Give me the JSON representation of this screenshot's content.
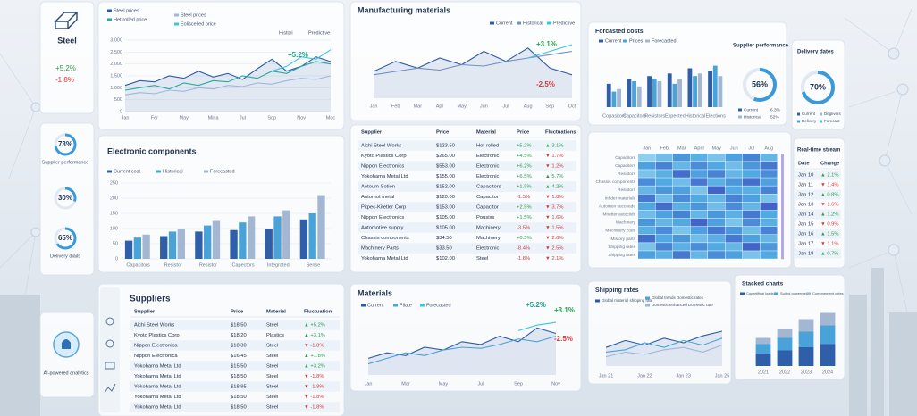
{
  "sidebar": {
    "steel": {
      "title": "Steel",
      "changes": [
        "+5.2%",
        "-1.8%"
      ]
    },
    "kpis": [
      {
        "value": 73,
        "label": "73%",
        "caption": "Supplier performance",
        "range": [
          0,
          100
        ]
      },
      {
        "value": 30,
        "label": "30%",
        "range": [
          0,
          100
        ]
      },
      {
        "value": 65,
        "label": "65%",
        "caption": "Delivery diails",
        "range": [
          0,
          100
        ]
      }
    ],
    "ai": "AI-powered analytics"
  },
  "steel_chart": {
    "type": "line",
    "toggles": [
      "Histori",
      "Predictive"
    ],
    "annotations": [
      "+5.2%"
    ],
    "categories": [
      "Jan",
      null,
      "Fer",
      null,
      "May",
      null,
      "Mina",
      null,
      "Jul",
      null,
      "Sop",
      null,
      "Nov",
      null,
      "Moc"
    ],
    "ylim": [
      0,
      3000
    ],
    "yticks": [
      0,
      500,
      {
        "value": 1000,
        "label": "1,000"
      },
      {
        "value": 1500,
        "label": "1,500"
      },
      {
        "value": 2000,
        "label": "2,000"
      },
      {
        "value": 2500,
        "label": "2,500"
      },
      {
        "value": 3000,
        "label": "3,000"
      }
    ],
    "series": [
      {
        "name": "Steel prices",
        "color": "#2d5aa8",
        "values": [
          1100,
          1300,
          1250,
          1500,
          1400,
          1700,
          1450,
          1600,
          1350,
          1800,
          2200,
          1700,
          1900,
          2300,
          2100
        ]
      },
      {
        "name": "Het-rolled price",
        "color": "#2aa7a0",
        "values": [
          900,
          1000,
          1100,
          950,
          1200,
          1100,
          1300,
          1250,
          1500,
          1400,
          1700,
          1600,
          1900,
          2100,
          2000
        ]
      },
      {
        "name": "Steel prices",
        "color": "#9ab8dd",
        "values": [
          700,
          800,
          750,
          900,
          850,
          1000,
          950,
          1100,
          1050,
          1200,
          1150,
          1300,
          1400,
          1350,
          1500
        ]
      },
      {
        "name": "Eoliscelled price",
        "color": "#38c6e0",
        "values": [
          null,
          null,
          null,
          null,
          null,
          null,
          null,
          null,
          null,
          null,
          1700,
          1900,
          2300,
          2200,
          2600
        ]
      }
    ]
  },
  "manufacturing": {
    "type": "line",
    "title": "Manufacturing materials",
    "annotations": [
      "+3.1%",
      "-2.5%"
    ],
    "categories": [
      "Jan",
      "Feb",
      "Mar",
      "Apr",
      "May",
      "Jun",
      "Jul",
      "Aug",
      "Sep",
      "Oct"
    ],
    "ylim": [
      0,
      100
    ],
    "series": [
      {
        "name": "Current",
        "color": "#2d5aa8",
        "values": [
          40,
          55,
          45,
          60,
          50,
          70,
          55,
          75,
          45,
          35
        ]
      },
      {
        "name": "Historical",
        "color": "#6f8fc7",
        "values": [
          35,
          40,
          45,
          42,
          50,
          48,
          55,
          60,
          65,
          70
        ]
      },
      {
        "name": "Predictive",
        "color": "#38c6e0",
        "values": [
          null,
          null,
          null,
          null,
          null,
          null,
          null,
          60,
          70,
          80
        ]
      }
    ]
  },
  "electronic": {
    "type": "bar",
    "title": "Electronic components",
    "categories": [
      "Capacitors",
      "Resistor",
      "Resistor",
      "Capectors",
      "Integrated",
      "Sense"
    ],
    "ylim": [
      0,
      250
    ],
    "yticks": [
      0,
      50,
      100,
      150,
      200,
      250
    ],
    "series": [
      {
        "name": "Current cost",
        "color": "#2f5fa8",
        "values": [
          60,
          75,
          90,
          95,
          100,
          130
        ]
      },
      {
        "name": "Historical",
        "color": "#4aa3d8",
        "values": [
          70,
          90,
          110,
          120,
          140,
          150
        ]
      },
      {
        "name": "Forecasted",
        "color": "#a3b6d2",
        "values": [
          80,
          100,
          125,
          140,
          160,
          210
        ]
      }
    ]
  },
  "price_table": {
    "columns": [
      "Supplier",
      "Price",
      "Material",
      "Price",
      "Fluctuations"
    ],
    "rows": [
      [
        "Aichi Steel Works",
        "$123.50",
        "Hot-rolled",
        "+5.2%",
        "▲ 3.1%"
      ],
      [
        "Kyoto Plastics Corp",
        "$265.00",
        "Electronic",
        "+4.5%",
        "▼ 1.7%"
      ],
      [
        "Nippon Electronics",
        "$553.00",
        "Electronic",
        "+6.2%",
        "▼ 1.2%"
      ],
      [
        "Yokohama Metal Ltd",
        "$155.00",
        "Electronic",
        "+6.5%",
        "▲ 5.7%"
      ],
      [
        "Aotoum Sotion",
        "$152.00",
        "Capacitors",
        "+1.5%",
        "▲ 4.2%"
      ],
      [
        "Automot metal",
        "$120.00",
        "Capacitor",
        "-1.5%",
        "▼ 1.8%"
      ],
      [
        "Pitpec-Kitetler Corp",
        "$153.00",
        "Capacitor",
        "+2.5%",
        "▼ 3.7%"
      ],
      [
        "Nippon Electronics",
        "$105.00",
        "Pousixs",
        "+1.5%",
        "▼ 1.6%"
      ],
      [
        "Automotive supply",
        "$105.00",
        "Machinery",
        "-3.5%",
        "▼ 1.5%"
      ],
      [
        "Chassis components",
        "$34.50",
        "Machinery",
        "+0.5%",
        "▼ 2.6%"
      ],
      [
        "Machinery Parts",
        "$33.50",
        "Electronic",
        "-8.4%",
        "▼ 2.5%"
      ],
      [
        "Yokohama Metal Ltd",
        "$102.00",
        "Steel",
        "-1.8%",
        "▼ 2.1%"
      ]
    ]
  },
  "forecast": {
    "type": "bar",
    "title": "Forcasted costs",
    "categories": [
      "Copasitors",
      "Capacitors",
      "Resistors",
      "Expected",
      "Historical",
      "Elections"
    ],
    "ylim": [
      0,
      100
    ],
    "series": [
      {
        "name": "Current",
        "color": "#2f5fa8",
        "values": [
          45,
          55,
          60,
          65,
          75,
          70
        ]
      },
      {
        "name": "Prices",
        "color": "#4aa3d8",
        "values": [
          30,
          50,
          55,
          45,
          60,
          80
        ]
      },
      {
        "name": "Forecasted",
        "color": "#a3b6d2",
        "values": [
          35,
          40,
          50,
          55,
          65,
          60
        ]
      }
    ]
  },
  "supplier_performance": {
    "title": "Supplier performance",
    "value": 56,
    "label": "56%",
    "range": [
      0,
      100
    ],
    "legend": [
      {
        "name": "Current",
        "value": "6.3%"
      },
      {
        "name": "Historical",
        "value": "52%"
      }
    ]
  },
  "delivery": {
    "title": "Delivery dates",
    "value": 70,
    "label": "70%",
    "range": [
      0,
      100
    ],
    "legend": [
      "Current",
      "Delivery",
      "Deglivers",
      "Forecast"
    ]
  },
  "heatmap": {
    "type": "heatmap",
    "range": [
      0,
      100
    ],
    "columns": [
      "Jan",
      "Feb",
      "Mar",
      "April",
      "May",
      "Jun",
      "Jul",
      "Aug"
    ],
    "rows": [
      "Capacitors",
      "Capaciters",
      "Resistors",
      "Chassis components",
      "Resistors",
      "Inhder materials",
      "Automon succeede",
      "Mnetter autociids",
      "Machinery",
      "Machinery cods",
      "Mistory parts",
      "Shipping rates",
      "Shipping rates"
    ],
    "values": [
      [
        20,
        35,
        60,
        45,
        30,
        55,
        70,
        40
      ],
      [
        55,
        70,
        40,
        65,
        50,
        35,
        60,
        75
      ],
      [
        30,
        45,
        80,
        55,
        70,
        40,
        50,
        65
      ],
      [
        65,
        50,
        35,
        75,
        45,
        60,
        80,
        55
      ],
      [
        40,
        60,
        55,
        30,
        85,
        50,
        45,
        70
      ],
      [
        75,
        35,
        65,
        50,
        40,
        70,
        55,
        30
      ],
      [
        50,
        80,
        45,
        60,
        35,
        65,
        40,
        85
      ],
      [
        35,
        55,
        70,
        40,
        60,
        45,
        75,
        50
      ],
      [
        60,
        40,
        50,
        85,
        55,
        30,
        65,
        45
      ],
      [
        45,
        65,
        30,
        55,
        75,
        60,
        35,
        70
      ],
      [
        80,
        50,
        60,
        35,
        45,
        75,
        55,
        40
      ],
      [
        30,
        70,
        45,
        65,
        50,
        40,
        85,
        60
      ],
      [
        55,
        45,
        75,
        40,
        65,
        55,
        30,
        50
      ]
    ]
  },
  "realtime": {
    "title": "Real-time stream",
    "columns": [
      "Date",
      "Change"
    ],
    "rows": [
      [
        "Jan 10",
        "▲ 2.1%"
      ],
      [
        "Jan 11",
        "▼ 1.4%"
      ],
      [
        "Jan 12",
        "▲ 0.8%"
      ],
      [
        "Jan 13",
        "▼ 1.6%"
      ],
      [
        "Jan 14",
        "▲ 1.2%"
      ],
      [
        "Jan 15",
        "▼ 0.9%"
      ],
      [
        "Jan 16",
        "▲ 1.5%"
      ],
      [
        "Jan 17",
        "▼ 1.1%"
      ],
      [
        "Jan 18",
        "▲ 0.7%"
      ]
    ]
  },
  "suppliers": {
    "title": "Suppliers",
    "columns": [
      "Supplier",
      "Price",
      "Material",
      "Fluctuation"
    ],
    "rows": [
      [
        "Aichi Steel Works",
        "$18.50",
        "Steel",
        "▲ +5.2%"
      ],
      [
        "Kyoto Plastics Corp",
        "$18.20",
        "Plastics",
        "▲ +3.1%"
      ],
      [
        "Nippon Electronica",
        "$18.30",
        "Steel",
        "▼ -1.8%"
      ],
      [
        "Nippon Electronica",
        "$16.45",
        "Steel",
        "▲ +1.8%"
      ],
      [
        "Yokohama Metal Ltd",
        "$15.50",
        "Steel",
        "▲ +3.2%"
      ],
      [
        "Yokohama Metal Ltd",
        "$18.50",
        "Steel",
        "▼ -1.8%"
      ],
      [
        "Yokohama Metal Ltd",
        "$18.95",
        "Steel",
        "▼ -1.8%"
      ],
      [
        "Yokohama Metal Ltd",
        "$18.50",
        "Steel",
        "▼ -1.8%"
      ],
      [
        "Yokohama Metal Ltd",
        "$18.50",
        "Steel",
        "▼ -1.8%"
      ]
    ]
  },
  "materials": {
    "type": "line",
    "title": "Materials",
    "annotations": [
      "+5.2%",
      "+3.1%",
      "-2.5%"
    ],
    "categories": [
      "Jan",
      null,
      "Mar",
      null,
      "May",
      null,
      "Jul",
      null,
      "Sep",
      null,
      "Nov"
    ],
    "ylim": [
      0,
      100
    ],
    "series": [
      {
        "name": "Current",
        "color": "#2d5aa8",
        "values": [
          30,
          40,
          35,
          50,
          45,
          60,
          55,
          70,
          60,
          85,
          75
        ]
      },
      {
        "name": "Pilate",
        "color": "#4aa3d8",
        "values": [
          20,
          30,
          40,
          35,
          45,
          50,
          48,
          55,
          65,
          60,
          70
        ]
      },
      {
        "name": "Forecasted",
        "color": "#38c6e0",
        "values": [
          null,
          null,
          null,
          null,
          null,
          null,
          null,
          null,
          80,
          90,
          95
        ]
      }
    ]
  },
  "shipping": {
    "type": "line",
    "title": "Shipping rates",
    "categories": [
      "Jan 21",
      null,
      "Jan 22",
      null,
      "Jan 23",
      null,
      "Jan 25"
    ],
    "ylim": [
      0,
      100
    ],
    "series": [
      {
        "name": "Global material shipping rate",
        "color": "#2d5aa8",
        "values": [
          40,
          55,
          45,
          60,
          50,
          65,
          75
        ]
      },
      {
        "name": "Global trends Domestic rates",
        "color": "#4aa3d8",
        "values": [
          30,
          35,
          50,
          40,
          55,
          45,
          60
        ]
      },
      {
        "name": "Domestic enhanced Domestic rate",
        "color": "#9ab8dd",
        "values": [
          20,
          30,
          25,
          35,
          40,
          30,
          45
        ]
      }
    ]
  },
  "stacked": {
    "type": "stacked",
    "title": "Stacked charts",
    "categories": [
      "2021",
      "2022",
      "2023",
      "2024"
    ],
    "ylim": [
      0,
      100
    ],
    "series": [
      {
        "name": "Copartifical loads",
        "color": "#2f5fa8",
        "values": [
          20,
          25,
          30,
          35
        ]
      },
      {
        "name": "Suited powerment",
        "color": "#4aa3d8",
        "values": [
          15,
          20,
          25,
          30
        ]
      },
      {
        "name": "Compnement cotes",
        "color": "#a3b6d2",
        "values": [
          10,
          15,
          20,
          20
        ]
      }
    ]
  }
}
